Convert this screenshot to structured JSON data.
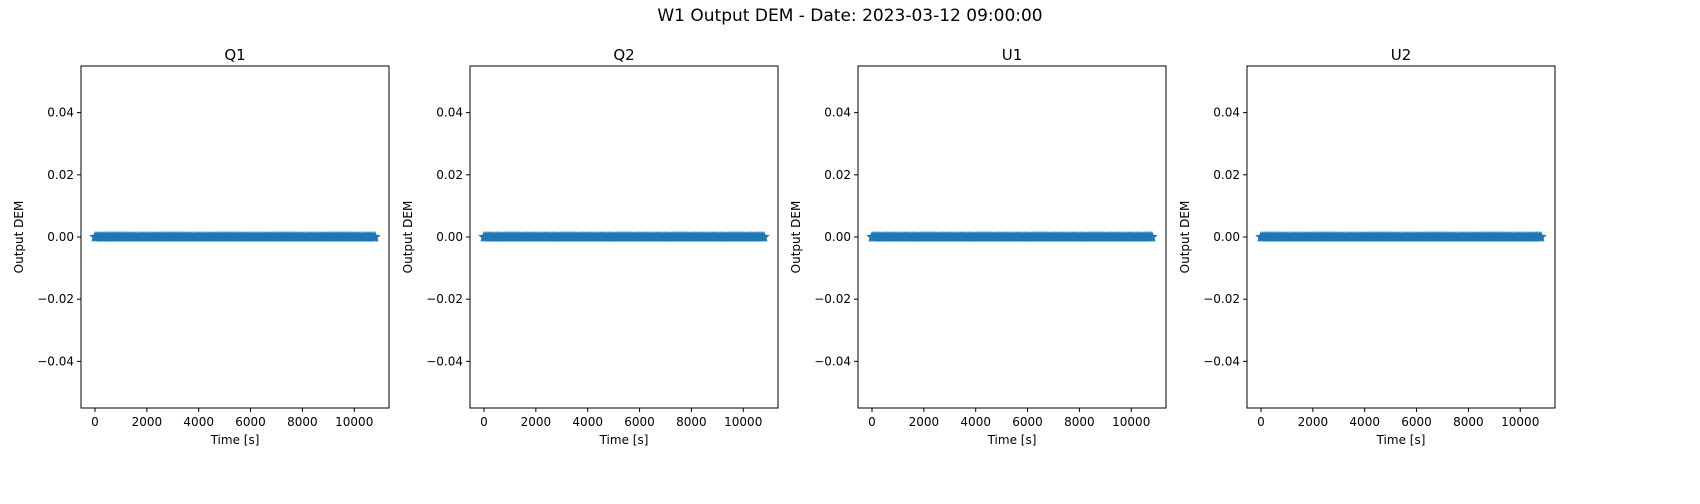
{
  "figure": {
    "suptitle": "W1 Output DEM - Date: 2023-03-12 09:00:00"
  },
  "series_color": "#1f77b4",
  "chart_data": [
    {
      "type": "scatter",
      "title": "Q1",
      "xlabel": "Time [s]",
      "ylabel": "Output DEM",
      "xlim": [
        -540,
        11340
      ],
      "ylim": [
        -0.055,
        0.055
      ],
      "xticks": [
        0,
        2000,
        4000,
        6000,
        8000,
        10000
      ],
      "yticks": [
        -0.04,
        -0.02,
        0.0,
        0.02,
        0.04
      ],
      "ytick_labels": [
        "−0.04",
        "−0.02",
        "0.00",
        "0.02",
        "0.04"
      ],
      "grid": false,
      "marker": "star",
      "series": [
        {
          "x_start": 0,
          "x_end": 10800,
          "x_step": 60,
          "y_constant": 0.0
        }
      ]
    },
    {
      "type": "scatter",
      "title": "Q2",
      "xlabel": "Time [s]",
      "ylabel": "Output DEM",
      "xlim": [
        -540,
        11340
      ],
      "ylim": [
        -0.055,
        0.055
      ],
      "xticks": [
        0,
        2000,
        4000,
        6000,
        8000,
        10000
      ],
      "yticks": [
        -0.04,
        -0.02,
        0.0,
        0.02,
        0.04
      ],
      "ytick_labels": [
        "−0.04",
        "−0.02",
        "0.00",
        "0.02",
        "0.04"
      ],
      "grid": false,
      "marker": "star",
      "series": [
        {
          "x_start": 0,
          "x_end": 10800,
          "x_step": 60,
          "y_constant": 0.0
        }
      ]
    },
    {
      "type": "scatter",
      "title": "U1",
      "xlabel": "Time [s]",
      "ylabel": "Output DEM",
      "xlim": [
        -540,
        11340
      ],
      "ylim": [
        -0.055,
        0.055
      ],
      "xticks": [
        0,
        2000,
        4000,
        6000,
        8000,
        10000
      ],
      "yticks": [
        -0.04,
        -0.02,
        0.0,
        0.02,
        0.04
      ],
      "ytick_labels": [
        "−0.04",
        "−0.02",
        "0.00",
        "0.02",
        "0.04"
      ],
      "grid": false,
      "marker": "star",
      "series": [
        {
          "x_start": 0,
          "x_end": 10800,
          "x_step": 60,
          "y_constant": 0.0
        }
      ]
    },
    {
      "type": "scatter",
      "title": "U2",
      "xlabel": "Time [s]",
      "ylabel": "Output DEM",
      "xlim": [
        -540,
        11340
      ],
      "ylim": [
        -0.055,
        0.055
      ],
      "xticks": [
        0,
        2000,
        4000,
        6000,
        8000,
        10000
      ],
      "yticks": [
        -0.04,
        -0.02,
        0.0,
        0.02,
        0.04
      ],
      "ytick_labels": [
        "−0.04",
        "−0.02",
        "0.00",
        "0.02",
        "0.04"
      ],
      "grid": false,
      "marker": "star",
      "series": [
        {
          "x_start": 0,
          "x_end": 10800,
          "x_step": 60,
          "y_constant": 0.0
        }
      ]
    }
  ]
}
